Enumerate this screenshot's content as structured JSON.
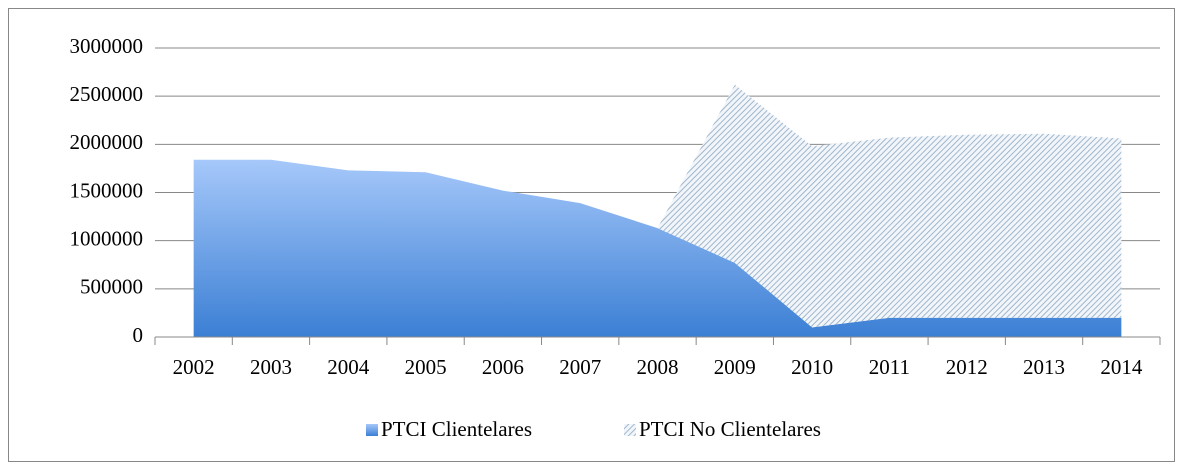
{
  "chart_data": {
    "type": "area",
    "stacked": true,
    "categories": [
      "2002",
      "2003",
      "2004",
      "2005",
      "2006",
      "2007",
      "2008",
      "2009",
      "2010",
      "2011",
      "2012",
      "2013",
      "2014"
    ],
    "series": [
      {
        "name": "PTCI Clientelares",
        "color": "#5b9bd5",
        "values": [
          1840000,
          1840000,
          1730000,
          1710000,
          1520000,
          1390000,
          1130000,
          770000,
          100000,
          200000,
          200000,
          200000,
          200000
        ]
      },
      {
        "name": "PTCI No Clientelares",
        "color": "#9fb6cc",
        "values": [
          0,
          0,
          0,
          0,
          0,
          0,
          0,
          1850000,
          1880000,
          1870000,
          1900000,
          1910000,
          1860000
        ]
      }
    ],
    "ylim": [
      0,
      3000000
    ],
    "yticks": [
      0,
      500000,
      1000000,
      1500000,
      2000000,
      2500000,
      3000000
    ],
    "grid": true,
    "legend": "bottom"
  }
}
